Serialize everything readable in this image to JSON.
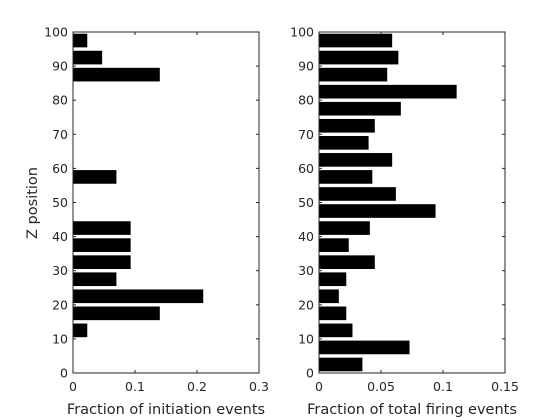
{
  "colors": {
    "bar": "#000000",
    "axis": "#262626",
    "background": "#ffffff"
  },
  "chart_data": [
    {
      "type": "bar",
      "orientation": "horizontal",
      "title": "",
      "xlabel": "Fraction of initiation events",
      "ylabel": "Z position",
      "xlim": [
        0,
        0.3
      ],
      "ylim": [
        0,
        100
      ],
      "xticks": [
        0,
        0.1,
        0.2,
        0.3
      ],
      "xtick_labels": [
        "0",
        "0.1",
        "0.2",
        "0.3"
      ],
      "yticks": [
        0,
        10,
        20,
        30,
        40,
        50,
        60,
        70,
        80,
        90,
        100
      ],
      "yticks_labels": [
        "0",
        "10",
        "20",
        "30",
        "40",
        "50",
        "60",
        "70",
        "80",
        "90",
        "100"
      ],
      "bin_width": 5,
      "bars": [
        {
          "z": 12.5,
          "value": 0.023
        },
        {
          "z": 17.5,
          "value": 0.14
        },
        {
          "z": 22.5,
          "value": 0.21
        },
        {
          "z": 27.5,
          "value": 0.07
        },
        {
          "z": 32.5,
          "value": 0.093
        },
        {
          "z": 37.5,
          "value": 0.093
        },
        {
          "z": 42.5,
          "value": 0.093
        },
        {
          "z": 57.5,
          "value": 0.07
        },
        {
          "z": 87.5,
          "value": 0.14
        },
        {
          "z": 92.5,
          "value": 0.047
        },
        {
          "z": 97.5,
          "value": 0.023
        }
      ]
    },
    {
      "type": "bar",
      "orientation": "horizontal",
      "title": "",
      "xlabel": "Fraction of total firing events",
      "ylabel": "",
      "xlim": [
        0,
        0.15
      ],
      "ylim": [
        0,
        100
      ],
      "xticks": [
        0,
        0.05,
        0.1,
        0.15
      ],
      "xtick_labels": [
        "0",
        "0.05",
        "0.1",
        "0.15"
      ],
      "yticks": [
        0,
        10,
        20,
        30,
        40,
        50,
        60,
        70,
        80,
        90,
        100
      ],
      "yticks_labels": [
        "0",
        "10",
        "20",
        "30",
        "40",
        "50",
        "60",
        "70",
        "80",
        "90",
        "100"
      ],
      "bin_width": 5,
      "bars": [
        {
          "z": 2.5,
          "value": 0.035
        },
        {
          "z": 7.5,
          "value": 0.073
        },
        {
          "z": 12.5,
          "value": 0.027
        },
        {
          "z": 17.5,
          "value": 0.022
        },
        {
          "z": 22.5,
          "value": 0.016
        },
        {
          "z": 27.5,
          "value": 0.022
        },
        {
          "z": 32.5,
          "value": 0.045
        },
        {
          "z": 37.5,
          "value": 0.024
        },
        {
          "z": 42.5,
          "value": 0.041
        },
        {
          "z": 47.5,
          "value": 0.094
        },
        {
          "z": 52.5,
          "value": 0.062
        },
        {
          "z": 57.5,
          "value": 0.043
        },
        {
          "z": 62.5,
          "value": 0.059
        },
        {
          "z": 67.5,
          "value": 0.04
        },
        {
          "z": 72.5,
          "value": 0.045
        },
        {
          "z": 77.5,
          "value": 0.066
        },
        {
          "z": 82.5,
          "value": 0.111
        },
        {
          "z": 87.5,
          "value": 0.055
        },
        {
          "z": 92.5,
          "value": 0.064
        },
        {
          "z": 97.5,
          "value": 0.059
        }
      ]
    }
  ]
}
